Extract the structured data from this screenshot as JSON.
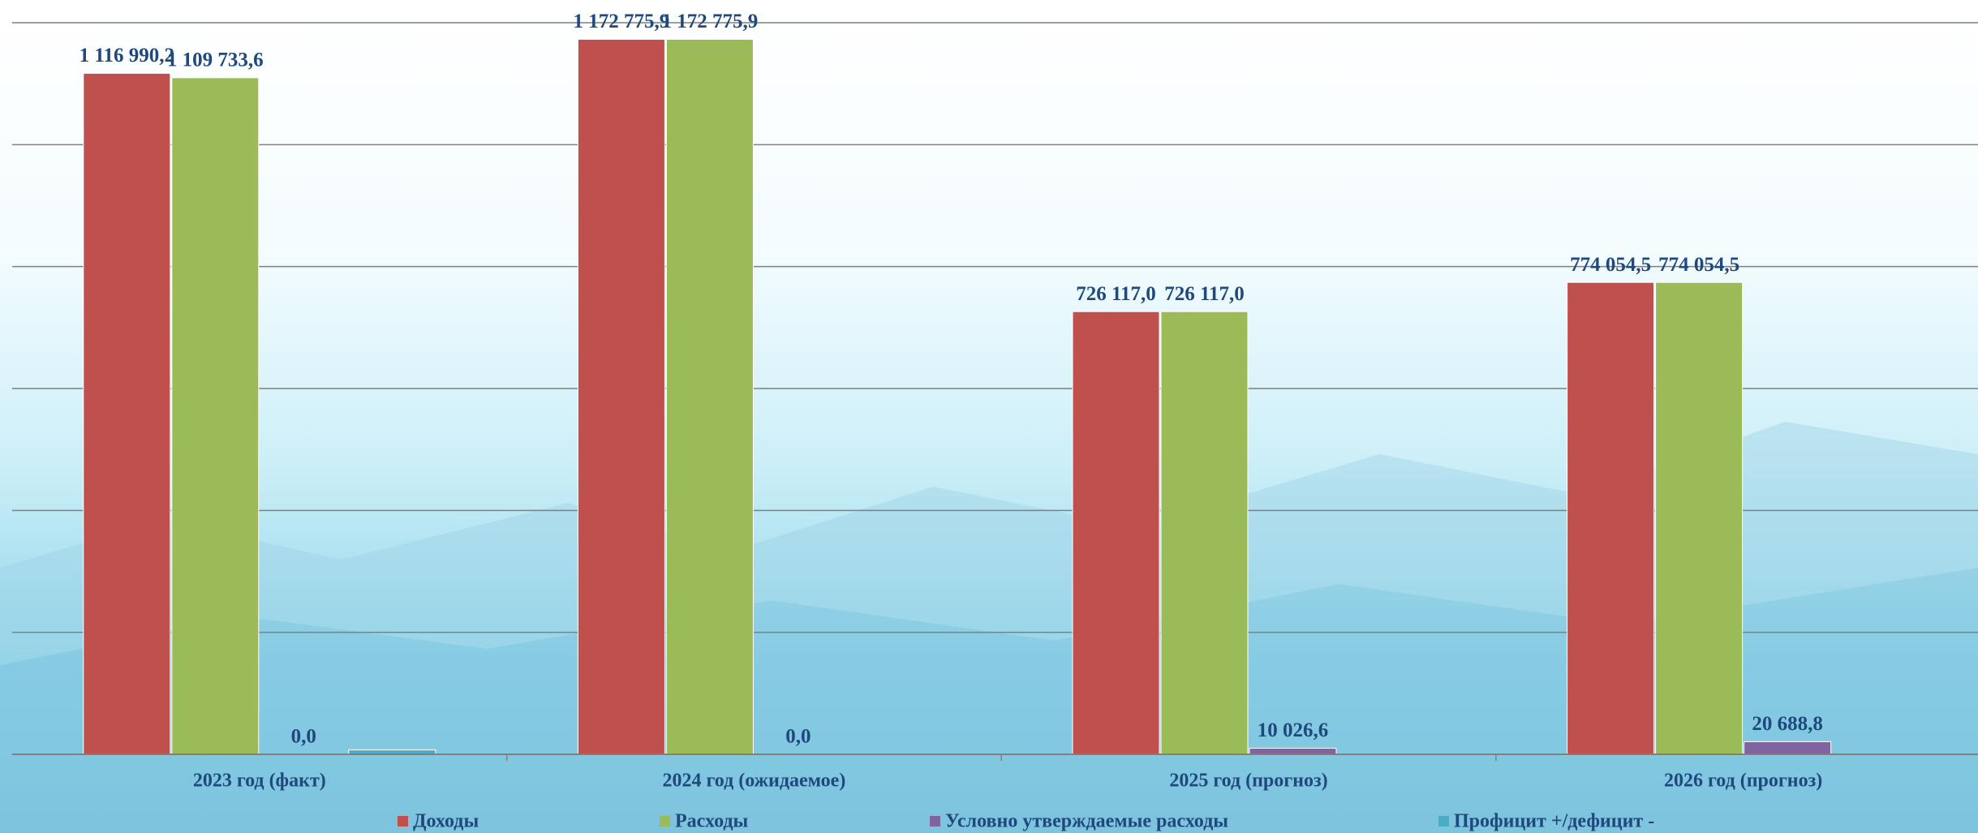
{
  "chart_data": {
    "type": "bar",
    "categories": [
      "2023 год (факт)",
      "2024 год (ожидаемое)",
      "2025 год (прогноз)",
      "2026 год (прогноз)"
    ],
    "series": [
      {
        "name": "Доходы",
        "color": "#c0504d",
        "values": [
          1116990.2,
          1172775.9,
          726117.0,
          774054.5
        ],
        "value_labels": [
          "1 116 990,2",
          "1 172 775,9",
          "726 117,0",
          "774 054,5"
        ]
      },
      {
        "name": "Расходы",
        "color": "#9bbb59",
        "values": [
          1109733.6,
          1172775.9,
          726117.0,
          774054.5
        ],
        "value_labels": [
          "1 109 733,6",
          "1 172 775,9",
          "726 117,0",
          "774 054,5"
        ]
      },
      {
        "name": "Условно утверждаемые расходы",
        "color": "#8064a2",
        "values": [
          0,
          0,
          10026.6,
          20688.8
        ],
        "value_labels": [
          "0,0",
          "0,0",
          "10 026,6",
          "20 688,8"
        ]
      },
      {
        "name": "Профицит +/дефицит -",
        "color": "#4bacc6",
        "values": [
          7256.6,
          0,
          0,
          0
        ],
        "value_labels": [
          null,
          null,
          null,
          null
        ]
      }
    ],
    "ylim": [
      0,
      1200000
    ],
    "yticks": [
      0,
      200000,
      400000,
      600000,
      800000,
      1000000,
      1200000
    ],
    "grid": true
  }
}
